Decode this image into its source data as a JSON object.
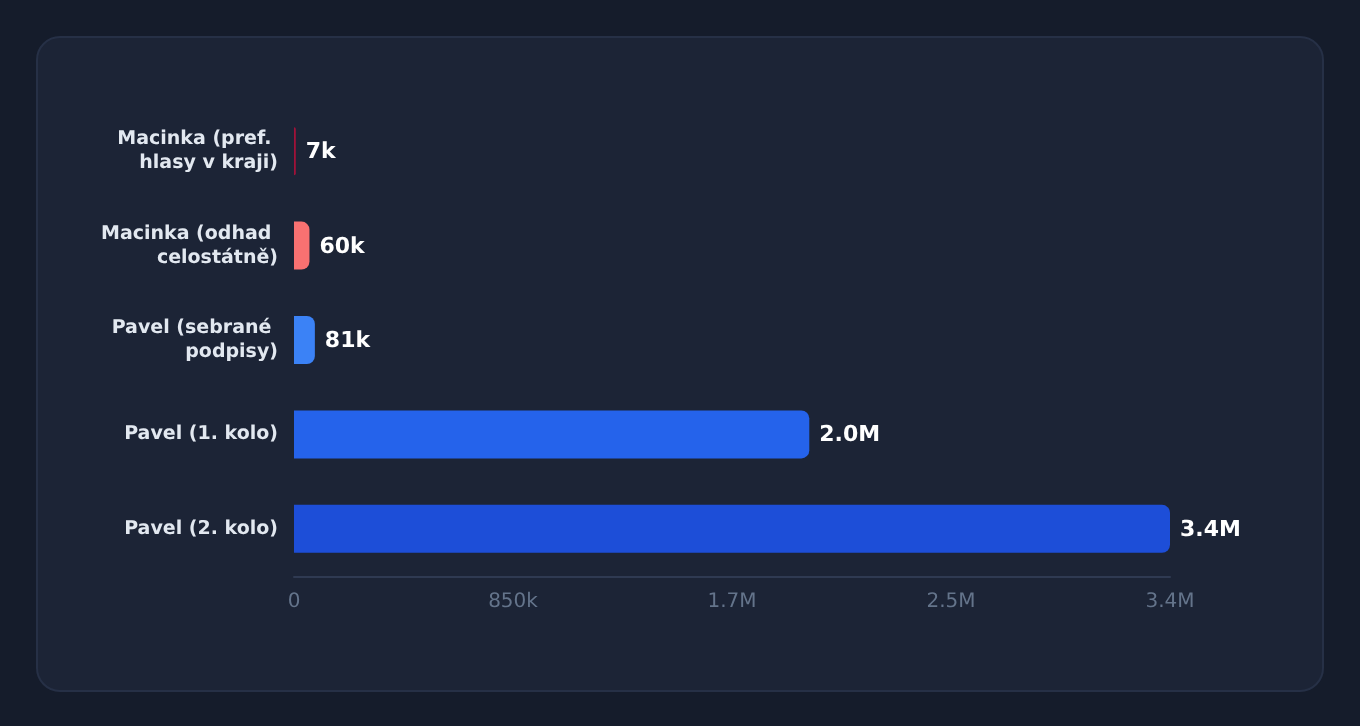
{
  "chart_data": {
    "type": "bar",
    "orientation": "horizontal",
    "categories": [
      "Macinka (pref. hlasy v kraji)",
      "Macinka (odhad celostátně)",
      "Pavel (sebrané podpisy)",
      "Pavel (1. kolo)",
      "Pavel (2. kolo)"
    ],
    "values": [
      7000,
      60000,
      81000,
      2000000,
      3400000
    ],
    "colors": [
      "#9f1239",
      "#f87171",
      "#3b82f6",
      "#2563eb",
      "#1d4ed8"
    ],
    "value_labels": [
      "7k",
      "60k",
      "81k",
      "2.0M",
      "3.4M"
    ],
    "xlim": [
      0,
      3400000
    ],
    "xticks": [
      0,
      {
        "value": 850000,
        "label": "850k"
      },
      {
        "value": 1700000,
        "label": "1.7M"
      },
      {
        "value": 2550000,
        "label": "2.5M"
      },
      {
        "value": 3400000,
        "label": "3.4M"
      }
    ],
    "grid": false
  }
}
